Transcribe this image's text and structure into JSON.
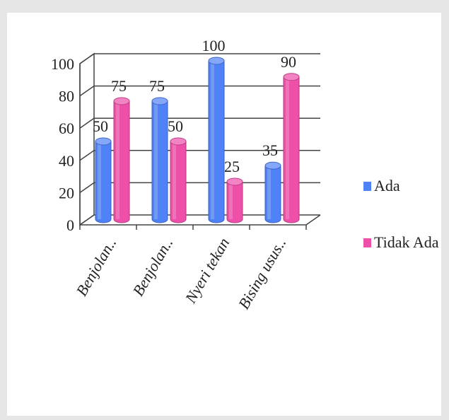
{
  "chart_data": {
    "type": "bar",
    "categories": [
      "Benjolan..",
      "Benjolan..",
      "Nyeri tekan",
      "Bising usus.."
    ],
    "series": [
      {
        "name": "Ada",
        "values": [
          50,
          75,
          100,
          35
        ],
        "color": "#4f81f7"
      },
      {
        "name": "Tidak Ada",
        "values": [
          75,
          50,
          25,
          90
        ],
        "color": "#ee4fa9"
      }
    ],
    "yticks": [
      "0",
      "20",
      "40",
      "60",
      "80",
      "100"
    ],
    "ylim": [
      0,
      100
    ],
    "grid": true,
    "legend_position": "right",
    "style": "3d-cylinder"
  }
}
